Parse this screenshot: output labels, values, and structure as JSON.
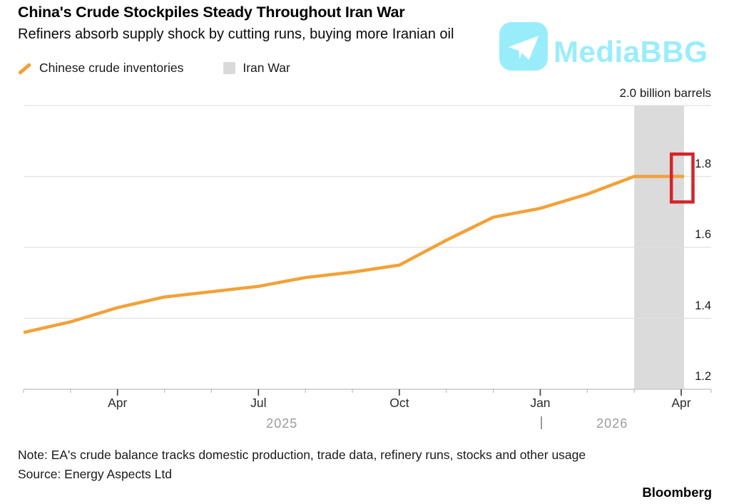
{
  "header": {
    "title": "China's Crude Stockpiles Steady Throughout Iran War",
    "subtitle": "Refiners absorb supply shock by cutting runs, buying more Iranian oil"
  },
  "watermark": {
    "text": "MediaBBG",
    "icon": "telegram-plane-icon",
    "color": "#7DE9FA"
  },
  "legend": {
    "items": [
      {
        "label": "Chinese crude inventories",
        "swatch": "line",
        "color": "#F2A138"
      },
      {
        "label": "Iran War",
        "swatch": "square",
        "color": "#D9D9D9"
      }
    ]
  },
  "footer": {
    "note": "Note: EA's crude balance tracks domestic production, trade data, refinery runs, stocks and other usage",
    "source": "Source: Energy Aspects Ltd",
    "brand": "Bloomberg"
  },
  "chart_data": {
    "type": "line",
    "title": "China's Crude Stockpiles Steady Throughout Iran War",
    "subtitle": "Refiners absorb supply shock by cutting runs, buying more Iranian oil",
    "categories": [
      "Feb 2025",
      "Mar 2025",
      "Apr 2025",
      "May 2025",
      "Jun 2025",
      "Jul 2025",
      "Aug 2025",
      "Sep 2025",
      "Oct 2025",
      "Nov 2025",
      "Dec 2025",
      "Jan 2026",
      "Feb 2026",
      "Mar 2026",
      "Apr 2026"
    ],
    "series": [
      {
        "name": "Chinese crude inventories",
        "color": "#F2A138",
        "stroke_width": 4.5,
        "values": [
          1.36,
          1.39,
          1.43,
          1.46,
          1.475,
          1.49,
          1.515,
          1.53,
          1.55,
          1.62,
          1.685,
          1.71,
          1.75,
          1.8,
          1.8
        ],
        "extend_to_month": 14.06
      }
    ],
    "band": {
      "label": "Iran War",
      "from_month": 13,
      "to_month": 14.06,
      "color": "#DBDBDB"
    },
    "highlight_box": {
      "from_month": 13.79,
      "to_month": 14.25,
      "value_low": 1.728,
      "value_high": 1.863,
      "color": "#D6232B",
      "stroke_width": 4.5
    },
    "y_axis": {
      "unit_label": "2.0 billion barrels",
      "range": [
        1.2,
        2.0
      ],
      "gridline_values": [
        2.0,
        1.8,
        1.6,
        1.4
      ],
      "tick_labels": [
        {
          "text": "1.8",
          "value": 1.8
        },
        {
          "text": "1.6",
          "value": 1.6
        },
        {
          "text": "1.4",
          "value": 1.4
        },
        {
          "text": "1.2",
          "value": 1.2
        }
      ],
      "gridline_color": "#E0E0E0",
      "grid": true,
      "position": "right"
    },
    "x_axis": {
      "axis_color": "#C9C9C9",
      "minor_tick_color": "#BDBDBD",
      "major_tick_color": "#4A4A4A",
      "minor_tick_months": [
        0,
        1,
        2,
        3,
        4,
        5,
        6,
        7,
        8,
        9,
        10,
        11,
        12,
        13,
        14
      ],
      "major_ticks": [
        {
          "month_index": 2,
          "label": "Apr"
        },
        {
          "month_index": 5,
          "label": "Jul"
        },
        {
          "month_index": 8,
          "label": "Oct"
        },
        {
          "month_index": 11,
          "label": "Jan"
        },
        {
          "month_index": 14,
          "label": "Apr"
        }
      ],
      "year_labels": [
        {
          "text": "2025",
          "from_month": 0,
          "to_month": 11
        },
        {
          "text": "2026",
          "from_month": 11,
          "to_month": 14.06
        }
      ],
      "year_divider_month": 11
    }
  }
}
